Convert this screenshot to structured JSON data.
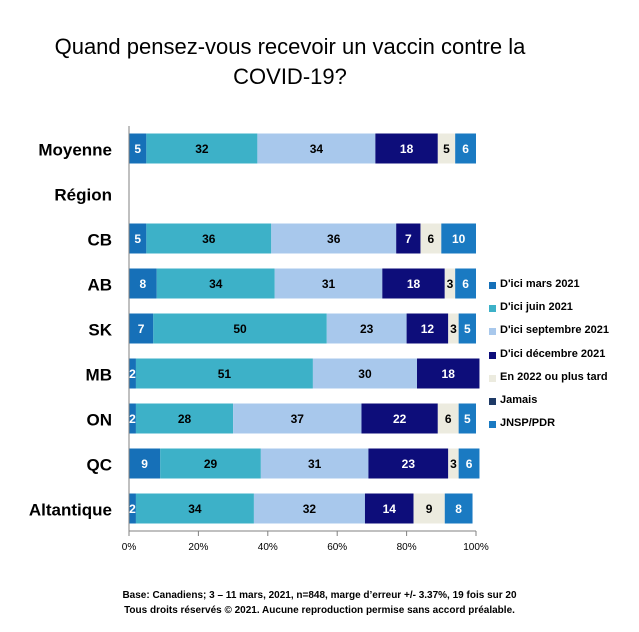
{
  "title": "Quand pensez-vous recevoir un vaccin contre la COVID-19?",
  "footer": {
    "line1": "Base: Canadiens; 3 – 11 mars, 2021, n=848, marge d’erreur +/- 3.37%, 19 fois sur 20",
    "line2": "Tous droits réservés © 2021. Aucune reproduction permise sans accord préalable."
  },
  "chart_data": {
    "type": "bar",
    "orientation": "horizontal",
    "stacked": true,
    "xlim": [
      0,
      100
    ],
    "x_ticks": [
      "0%",
      "20%",
      "40%",
      "60%",
      "80%",
      "100%"
    ],
    "grid": false,
    "legend_position": "right",
    "categories": [
      "Moyenne",
      "Région",
      "CB",
      "AB",
      "SK",
      "MB",
      "ON",
      "QC",
      "Altantique"
    ],
    "series": [
      {
        "name": "D'ici mars 2021",
        "color": "#1670B8",
        "label_color": "#ffffff",
        "values": [
          5,
          null,
          5,
          8,
          7,
          2,
          2,
          9,
          2
        ]
      },
      {
        "name": "D'ici juin 2021",
        "color": "#3DB1C8",
        "label_color": "#000000",
        "values": [
          32,
          null,
          36,
          34,
          50,
          51,
          28,
          29,
          34
        ]
      },
      {
        "name": "D'ici septembre 2021",
        "color": "#A8C8EC",
        "label_color": "#000000",
        "values": [
          34,
          null,
          36,
          31,
          23,
          30,
          37,
          31,
          32
        ]
      },
      {
        "name": "D'ici décembre 2021",
        "color": "#0D0D7A",
        "label_color": "#ffffff",
        "values": [
          18,
          null,
          7,
          18,
          12,
          18,
          22,
          23,
          14
        ]
      },
      {
        "name": "En 2022 ou plus tard",
        "color": "#ECEBDF",
        "label_color": "#000000",
        "values": [
          5,
          null,
          6,
          3,
          3,
          null,
          6,
          3,
          9
        ]
      },
      {
        "name": "Jamais",
        "color": "#1E3A66",
        "label_color": "#ffffff",
        "values": [
          null,
          null,
          null,
          null,
          null,
          null,
          null,
          null,
          null
        ]
      },
      {
        "name": "JNSP/PDR",
        "color": "#1A7AC2",
        "label_color": "#ffffff",
        "values": [
          6,
          null,
          10,
          6,
          5,
          null,
          5,
          6,
          8
        ]
      }
    ]
  }
}
